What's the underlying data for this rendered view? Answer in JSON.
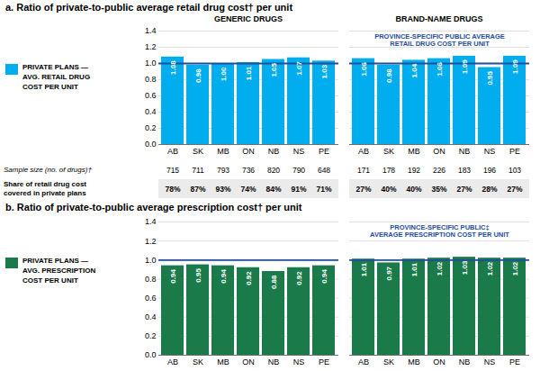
{
  "chart_data": [
    {
      "type": "bar",
      "title": "a. Ratio of private-to-public average retail drug cost† per unit",
      "legend": "left",
      "legend_label": "PRIVATE PLANS —\nAVG. RETAIL DRUG\nCOST PER UNIT",
      "color": "#00AEEF",
      "categories": [
        "AB",
        "SK",
        "MB",
        "ON",
        "NB",
        "NS",
        "PE"
      ],
      "panels": [
        {
          "title": "GENERIC DRUGS",
          "values": [
            1.08,
            0.98,
            1.0,
            1.01,
            1.05,
            1.07,
            1.03
          ],
          "value_labels": [
            "1.08",
            "0.98",
            "1.00",
            "1.01",
            "1.05",
            "1.07",
            "1.03"
          ]
        },
        {
          "title": "BRAND-NAME DRUGS",
          "values": [
            1.06,
            0.98,
            1.04,
            1.06,
            1.09,
            0.95,
            1.09
          ],
          "value_labels": [
            "1.06",
            "0.98",
            "1.04",
            "1.06",
            "1.09",
            "0.95",
            "1.09"
          ],
          "tick_labels": "x"
        }
      ],
      "ylim": [
        0,
        1.4
      ],
      "yticks": [
        {
          "value": 0,
          "label": "0.0"
        },
        0.2,
        0.4,
        0.6,
        0.8,
        {
          "value": 1,
          "label": "1.0"
        },
        1.2,
        1.4
      ],
      "grid": true,
      "data_labels": true,
      "annotations": [
        {
          "text": "PROVINCE-SPECIFIC PUBLIC AVERAGE\nRETAIL DRUG COST PER UNIT",
          "y": 1,
          "color": "#1F4E9B"
        }
      ],
      "table": [
        {
          "label": "Sample size (no. of drugs)†",
          "values": [
            [
              715,
              711,
              793,
              736,
              820,
              790,
              648
            ],
            [
              171,
              178,
              192,
              226,
              183,
              196,
              103
            ]
          ]
        },
        {
          "label": "Share of retail drug cost\ncovered in private plans",
          "values": [
            [
              78,
              87,
              93,
              74,
              84,
              91,
              71
            ],
            [
              27,
              40,
              40,
              35,
              27,
              28,
              27
            ]
          ],
          "value_labels": [
            [
              "78%",
              "87%",
              "93%",
              "74%",
              "84%",
              "91%",
              "71%"
            ],
            [
              "27%",
              "40%",
              "40%",
              "35%",
              "27%",
              "28%",
              "27%"
            ]
          ]
        }
      ]
    },
    {
      "type": "bar",
      "title": "b. Ratio of private-to-public average prescription cost† per unit",
      "legend": "left",
      "legend_label": "PRIVATE PLANS —\nAVG. PRESCRIPTION\nCOST PER UNIT",
      "color": "#1A7A4A",
      "categories": [
        "AB",
        "SK",
        "MB",
        "ON",
        "NB",
        "NS",
        "PE"
      ],
      "panels": [
        {
          "values": [
            0.94,
            0.95,
            0.94,
            0.92,
            0.88,
            0.92,
            0.94
          ],
          "value_labels": [
            "0.94",
            "0.95",
            "0.94",
            "0.92",
            "0.88",
            "0.92",
            "0.94"
          ]
        },
        {
          "values": [
            1.01,
            0.97,
            1.01,
            1.02,
            1.03,
            1.02,
            1.02
          ],
          "value_labels": [
            "1.01",
            "0.97",
            "1.01",
            "1.02",
            "1.03",
            "1.02",
            "1.02"
          ],
          "tick_labels": "x"
        }
      ],
      "ylim": [
        0,
        1.4
      ],
      "yticks": [
        {
          "value": 0,
          "label": "0.0"
        },
        0.2,
        0.4,
        0.6,
        0.8,
        {
          "value": 1,
          "label": "1.0"
        },
        1.2,
        1.4
      ],
      "grid": true,
      "data_labels": true,
      "annotations": [
        {
          "text": "PROVINCE-SPECIFIC PUBLIC‡\nAVERAGE PRESCRIPTION COST PER UNIT",
          "y": 1,
          "color": "#1F4E9B"
        }
      ]
    }
  ]
}
